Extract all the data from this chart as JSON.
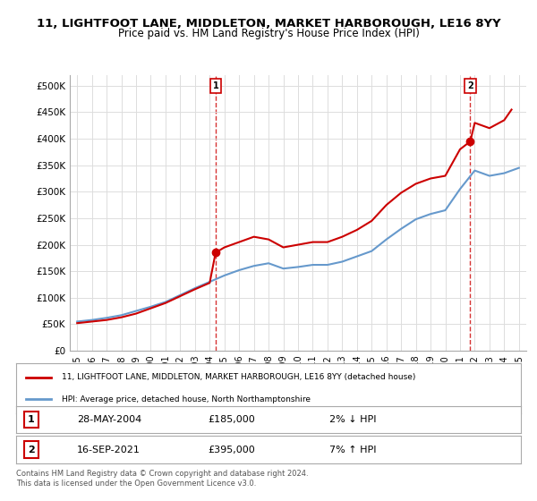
{
  "title_line1": "11, LIGHTFOOT LANE, MIDDLETON, MARKET HARBOROUGH, LE16 8YY",
  "title_line2": "Price paid vs. HM Land Registry's House Price Index (HPI)",
  "ylabel_ticks": [
    "£0",
    "£50K",
    "£100K",
    "£150K",
    "£200K",
    "£250K",
    "£300K",
    "£350K",
    "£400K",
    "£450K",
    "£500K"
  ],
  "ytick_values": [
    0,
    50000,
    100000,
    150000,
    200000,
    250000,
    300000,
    350000,
    400000,
    450000,
    500000
  ],
  "ylim": [
    0,
    520000
  ],
  "xlim_start": 1994.5,
  "xlim_end": 2025.5,
  "xtick_years": [
    1995,
    1996,
    1997,
    1998,
    1999,
    2000,
    2001,
    2002,
    2003,
    2004,
    2005,
    2006,
    2007,
    2008,
    2009,
    2010,
    2011,
    2012,
    2013,
    2014,
    2015,
    2016,
    2017,
    2018,
    2019,
    2020,
    2021,
    2022,
    2023,
    2024,
    2025
  ],
  "hpi_color": "#6699cc",
  "price_color": "#cc0000",
  "marker1_x": 2004.4,
  "marker1_y": 185000,
  "marker2_x": 2021.7,
  "marker2_y": 395000,
  "legend_line1": "11, LIGHTFOOT LANE, MIDDLETON, MARKET HARBOROUGH, LE16 8YY (detached house)",
  "legend_line2": "HPI: Average price, detached house, North Northamptonshire",
  "table_row1": [
    "1",
    "28-MAY-2004",
    "£185,000",
    "2% ↓ HPI"
  ],
  "table_row2": [
    "2",
    "16-SEP-2021",
    "£395,000",
    "7% ↑ HPI"
  ],
  "footnote": "Contains HM Land Registry data © Crown copyright and database right 2024.\nThis data is licensed under the Open Government Licence v3.0.",
  "bg_color": "#ffffff",
  "grid_color": "#dddddd",
  "hpi_data_x": [
    1995,
    1996,
    1997,
    1998,
    1999,
    2000,
    2001,
    2002,
    2003,
    2004,
    2005,
    2006,
    2007,
    2008,
    2009,
    2010,
    2011,
    2012,
    2013,
    2014,
    2015,
    2016,
    2017,
    2018,
    2019,
    2020,
    2021,
    2022,
    2023,
    2024,
    2025
  ],
  "hpi_data_y": [
    55000,
    58000,
    62000,
    67000,
    75000,
    83000,
    92000,
    105000,
    118000,
    130000,
    142000,
    152000,
    160000,
    165000,
    155000,
    158000,
    162000,
    162000,
    168000,
    178000,
    188000,
    210000,
    230000,
    248000,
    258000,
    265000,
    305000,
    340000,
    330000,
    335000,
    345000
  ],
  "price_data_x": [
    1995,
    1996,
    1997,
    1998,
    1999,
    2000,
    2001,
    2002,
    2003,
    2004,
    2004.4,
    2005,
    2006,
    2007,
    2008,
    2009,
    2010,
    2011,
    2012,
    2013,
    2014,
    2015,
    2016,
    2017,
    2018,
    2019,
    2020,
    2021,
    2021.7,
    2022,
    2023,
    2024,
    2024.5
  ],
  "price_data_y": [
    52000,
    55000,
    58000,
    63000,
    70000,
    80000,
    90000,
    103000,
    116000,
    128000,
    185000,
    195000,
    205000,
    215000,
    210000,
    195000,
    200000,
    205000,
    205000,
    215000,
    228000,
    245000,
    275000,
    298000,
    315000,
    325000,
    330000,
    380000,
    395000,
    430000,
    420000,
    435000,
    455000
  ]
}
